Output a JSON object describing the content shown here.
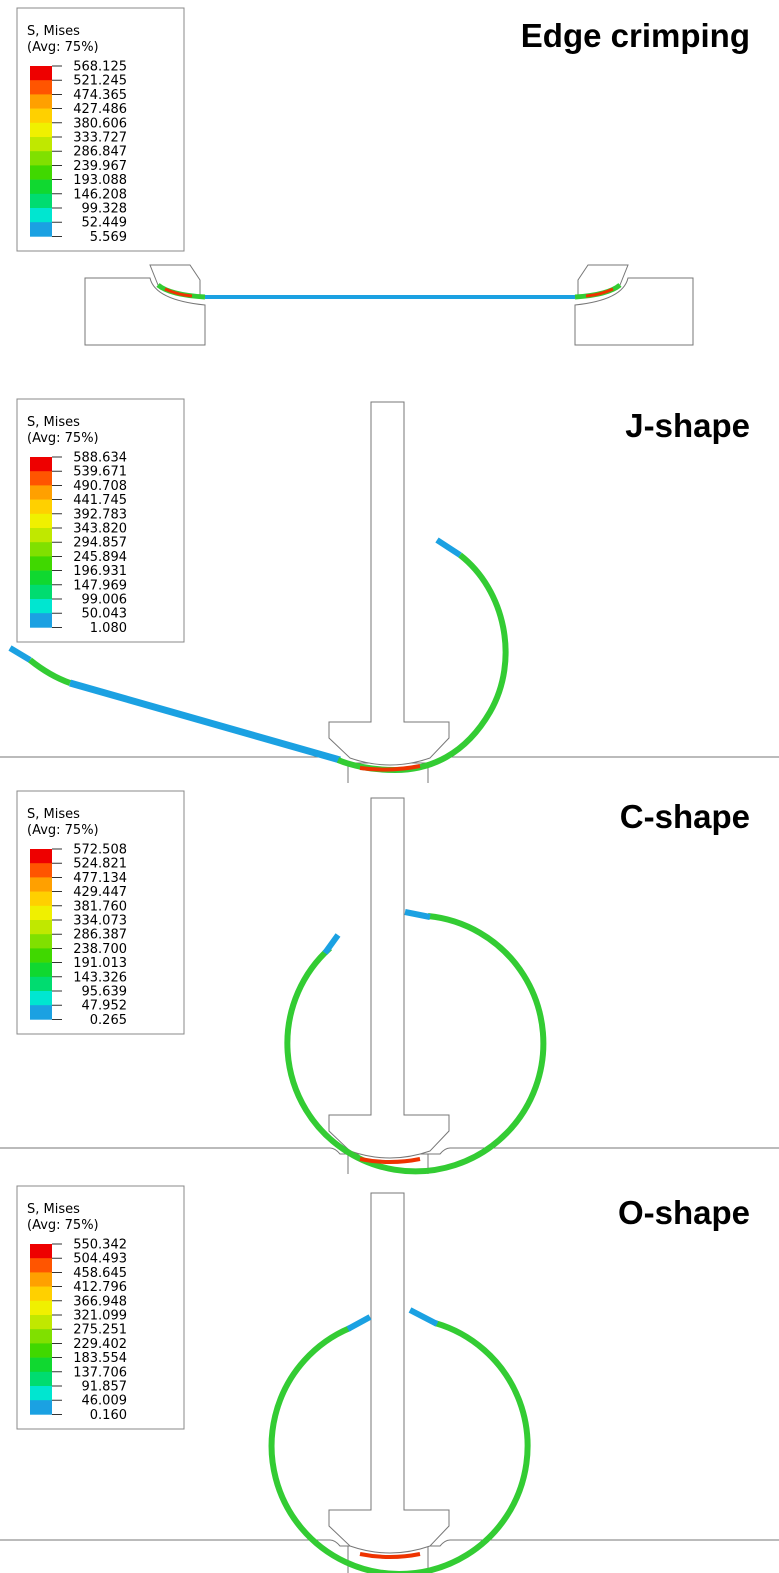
{
  "panels": [
    {
      "title": "Edge crimping",
      "legend": {
        "title": "S, Mises",
        "subtitle": "(Avg: 75%)",
        "values": [
          "568.125",
          "521.245",
          "474.365",
          "427.486",
          "380.606",
          "333.727",
          "286.847",
          "239.967",
          "193.088",
          "146.208",
          "99.328",
          "52.449",
          "5.569"
        ]
      }
    },
    {
      "title": "J-shape",
      "legend": {
        "title": "S, Mises",
        "subtitle": "(Avg: 75%)",
        "values": [
          "588.634",
          "539.671",
          "490.708",
          "441.745",
          "392.783",
          "343.820",
          "294.857",
          "245.894",
          "196.931",
          "147.969",
          "99.006",
          "50.043",
          "1.080"
        ]
      }
    },
    {
      "title": "C-shape",
      "legend": {
        "title": "S, Mises",
        "subtitle": "(Avg: 75%)",
        "values": [
          "572.508",
          "524.821",
          "477.134",
          "429.447",
          "381.760",
          "334.073",
          "286.387",
          "238.700",
          "191.013",
          "143.326",
          "95.639",
          "47.952",
          "0.265"
        ]
      }
    },
    {
      "title": "O-shape",
      "legend": {
        "title": "S, Mises",
        "subtitle": "(Avg: 75%)",
        "values": [
          "550.342",
          "504.493",
          "458.645",
          "412.796",
          "366.948",
          "321.099",
          "275.251",
          "229.402",
          "183.554",
          "137.706",
          "91.857",
          "46.009",
          "0.160"
        ]
      }
    }
  ]
}
